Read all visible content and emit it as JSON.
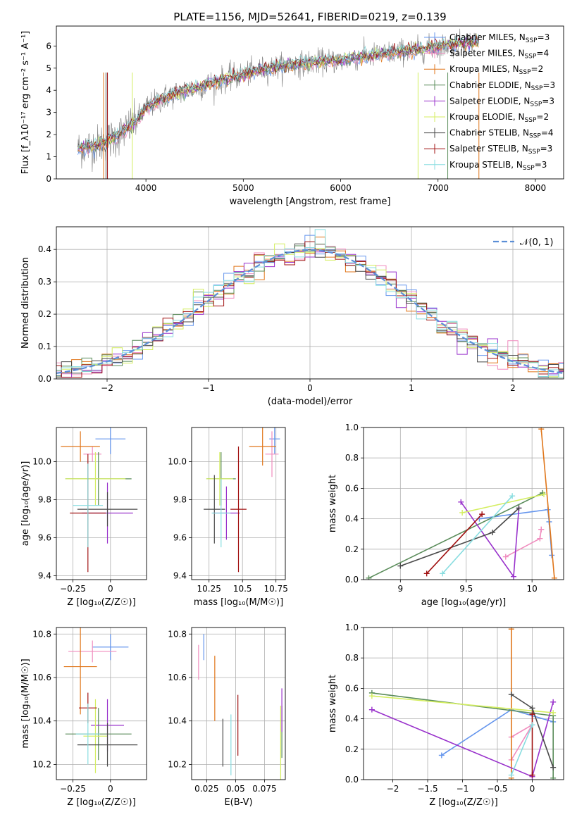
{
  "figure": {
    "title": "PLATE=1156, MJD=52641, FIBERID=0219, z=0.139"
  },
  "models": [
    {
      "name": "Chabrier MILES",
      "nssp": "3",
      "color": "#6495ed"
    },
    {
      "name": "Salpeter MILES",
      "nssp": "4",
      "color": "#f08cbe"
    },
    {
      "name": "Kroupa MILES",
      "nssp": "2",
      "color": "#e0761a"
    },
    {
      "name": "Chabrier ELODIE",
      "nssp": "3",
      "color": "#5a8c5a"
    },
    {
      "name": "Salpeter ELODIE",
      "nssp": "3",
      "color": "#9932cc"
    },
    {
      "name": "Kroupa ELODIE",
      "nssp": "2",
      "color": "#d4ee60"
    },
    {
      "name": "Chabrier STELIB",
      "nssp": "4",
      "color": "#4a4a4a"
    },
    {
      "name": "Salpeter STELIB",
      "nssp": "3",
      "color": "#a01010"
    },
    {
      "name": "Kroupa STELIB",
      "nssp": "3",
      "color": "#88dde0"
    }
  ],
  "chart_data": [
    {
      "id": "spectrum",
      "type": "line",
      "xlabel": "wavelength [Angstrom, rest frame]",
      "ylabel": "Flux [f_λ10⁻¹⁷ erg cm⁻² s⁻¹ A⁻¹]",
      "xlim": [
        3080,
        8290
      ],
      "ylim": [
        0,
        6.9
      ],
      "xticks": [
        4000,
        5000,
        6000,
        7000,
        8000
      ],
      "yticks": [
        0,
        1,
        2,
        3,
        4,
        5,
        6
      ],
      "grid": false,
      "legend": "top-right",
      "data_color": "#808080",
      "continuum": {
        "x": [
          3300,
          3500,
          3700,
          3900,
          4000,
          4200,
          4400,
          4600,
          4800,
          5000,
          5200,
          5400,
          5600,
          5800,
          6000,
          6200,
          6400,
          6600,
          6800,
          7000,
          7200,
          7400
        ],
        "y": [
          1.35,
          1.55,
          1.9,
          2.6,
          3.2,
          3.7,
          4.0,
          4.2,
          4.5,
          4.7,
          4.95,
          5.1,
          5.2,
          5.3,
          5.35,
          5.5,
          5.6,
          5.75,
          5.85,
          5.95,
          6.1,
          6.2
        ]
      }
    },
    {
      "id": "residuals",
      "type": "histogram",
      "xlabel": "(data-model)/error",
      "ylabel": "Normed distribution",
      "xlim": [
        -2.5,
        2.5
      ],
      "ylim": [
        0,
        0.47
      ],
      "xticks": [
        -2,
        -1,
        0,
        1,
        2
      ],
      "yticks": [
        0.0,
        0.1,
        0.2,
        0.3,
        0.4
      ],
      "grid": true,
      "legend": "top-right",
      "bin_width": 0.1,
      "reference_curve": {
        "label": "𝒩(0, 1)",
        "color": "#5b8ed6"
      }
    },
    {
      "id": "age-vs-Z",
      "type": "errorbar",
      "xlabel": "Z [log₁₀(Z/Z☉)]",
      "ylabel": "age  [log₁₀(age/yr)]",
      "xlim": [
        -0.36,
        0.24
      ],
      "ylim": [
        9.38,
        10.18
      ],
      "xticks": [
        -0.25,
        0.0
      ],
      "yticks": [
        9.4,
        9.6,
        9.8,
        10.0
      ],
      "grid": true,
      "points": [
        {
          "x": 0.0,
          "y": 10.12,
          "xerr": 0.1,
          "yerr": 0.08
        },
        {
          "x": -0.12,
          "y": 10.04,
          "xerr": 0.06,
          "yerr": 0.04
        },
        {
          "x": -0.2,
          "y": 10.08,
          "xerr": 0.13,
          "yerr": 0.08
        },
        {
          "x": -0.08,
          "y": 9.91,
          "xerr": 0.22,
          "yerr": 0.14
        },
        {
          "x": -0.02,
          "y": 9.73,
          "xerr": 0.17,
          "yerr": 0.16
        },
        {
          "x": -0.1,
          "y": 9.91,
          "xerr": 0.2,
          "yerr": 0.14
        },
        {
          "x": -0.02,
          "y": 9.75,
          "xerr": 0.2,
          "yerr": 0.09
        },
        {
          "x": -0.15,
          "y": 9.73,
          "xerr": 0.12,
          "yerr": 0.31
        },
        {
          "x": -0.15,
          "y": 9.77,
          "xerr": 0.1,
          "yerr": 0.22
        }
      ]
    },
    {
      "id": "age-vs-mass",
      "type": "errorbar",
      "xlabel": "mass [log₁₀(M/M☉)]",
      "ylabel": "",
      "xlim": [
        10.12,
        10.82
      ],
      "ylim": [
        9.38,
        10.18
      ],
      "xticks": [
        10.25,
        10.5,
        10.75
      ],
      "yticks": [
        9.4,
        9.6,
        9.8,
        10.0
      ],
      "grid": true,
      "points": [
        {
          "x": 10.74,
          "y": 10.12,
          "xerr": 0.04,
          "yerr": 0.08
        },
        {
          "x": 10.72,
          "y": 10.04,
          "xerr": 0.05,
          "yerr": 0.12
        },
        {
          "x": 10.65,
          "y": 10.08,
          "xerr": 0.1,
          "yerr": 0.1
        },
        {
          "x": 10.34,
          "y": 9.91,
          "xerr": 0.11,
          "yerr": 0.14
        },
        {
          "x": 10.38,
          "y": 9.73,
          "xerr": 0.1,
          "yerr": 0.14
        },
        {
          "x": 10.33,
          "y": 9.91,
          "xerr": 0.1,
          "yerr": 0.14
        },
        {
          "x": 10.29,
          "y": 9.75,
          "xerr": 0.08,
          "yerr": 0.18
        },
        {
          "x": 10.47,
          "y": 9.75,
          "xerr": 0.06,
          "yerr": 0.33
        },
        {
          "x": 10.34,
          "y": 9.73,
          "xerr": 0.07,
          "yerr": 0.18
        }
      ]
    },
    {
      "id": "weight-vs-age",
      "type": "line",
      "xlabel": "age  [log₁₀(age/yr)]",
      "ylabel": "mass weight",
      "xlim": [
        8.72,
        10.24
      ],
      "ylim": [
        0,
        1
      ],
      "xticks": [
        9.0,
        9.5,
        10.0
      ],
      "yticks": [
        0.0,
        0.2,
        0.4,
        0.6,
        0.8,
        1.0
      ],
      "grid": true,
      "series": [
        {
          "x": [
            9.6,
            10.12,
            10.13,
            10.15
          ],
          "y": [
            0.4,
            0.46,
            0.38,
            0.16
          ]
        },
        {
          "x": [
            9.8,
            10.06,
            10.07,
            10.07
          ],
          "y": [
            0.15,
            0.27,
            0.33,
            0.33
          ]
        },
        {
          "x": [
            10.07,
            10.17
          ],
          "y": [
            0.99,
            0.01
          ]
        },
        {
          "x": [
            8.76,
            10.08
          ],
          "y": [
            0.01,
            0.57
          ]
        },
        {
          "x": [
            9.46,
            9.86,
            9.9
          ],
          "y": [
            0.51,
            0.02,
            0.47
          ]
        },
        {
          "x": [
            9.47,
            10.09
          ],
          "y": [
            0.44,
            0.56
          ]
        },
        {
          "x": [
            9.0,
            9.7,
            9.9
          ],
          "y": [
            0.09,
            0.31,
            0.47
          ]
        },
        {
          "x": [
            9.2,
            9.62
          ],
          "y": [
            0.04,
            0.43
          ]
        },
        {
          "x": [
            9.32,
            9.85
          ],
          "y": [
            0.04,
            0.55
          ]
        }
      ]
    },
    {
      "id": "mass-vs-Z",
      "type": "errorbar",
      "xlabel": "Z [log₁₀(Z/Z☉)]",
      "ylabel": "mass [log₁₀(M/M☉)]",
      "xlim": [
        -0.36,
        0.24
      ],
      "ylim": [
        10.13,
        10.83
      ],
      "xticks": [
        -0.25,
        0.0
      ],
      "yticks": [
        10.2,
        10.4,
        10.6,
        10.8
      ],
      "grid": true,
      "points": [
        {
          "x": 0.0,
          "y": 10.74,
          "xerr": 0.12,
          "yerr": 0.06
        },
        {
          "x": -0.12,
          "y": 10.72,
          "xerr": 0.16,
          "yerr": 0.05
        },
        {
          "x": -0.2,
          "y": 10.65,
          "xerr": 0.11,
          "yerr": 0.22
        },
        {
          "x": -0.08,
          "y": 10.34,
          "xerr": 0.22,
          "yerr": 0.12
        },
        {
          "x": -0.02,
          "y": 10.38,
          "xerr": 0.11,
          "yerr": 0.12
        },
        {
          "x": -0.1,
          "y": 10.33,
          "xerr": 0.08,
          "yerr": 0.17
        },
        {
          "x": -0.02,
          "y": 10.29,
          "xerr": 0.2,
          "yerr": 0.1
        },
        {
          "x": -0.15,
          "y": 10.46,
          "xerr": 0.06,
          "yerr": 0.07
        },
        {
          "x": -0.15,
          "y": 10.34,
          "xerr": 0.08,
          "yerr": 0.14
        }
      ]
    },
    {
      "id": "mass-vs-ebv",
      "type": "errorbar",
      "xlabel": "E(B-V)",
      "ylabel": "",
      "xlim": [
        0.012,
        0.093
      ],
      "ylim": [
        10.13,
        10.83
      ],
      "xticks": [
        0.025,
        0.05,
        0.075
      ],
      "yticks": [
        10.2,
        10.4,
        10.6,
        10.8
      ],
      "grid": true,
      "points": [
        {
          "x": 0.0225,
          "y": 10.74,
          "xerr": 0,
          "yerr": 0.06
        },
        {
          "x": 0.018,
          "y": 10.67,
          "xerr": 0,
          "yerr": 0.08
        },
        {
          "x": 0.032,
          "y": 10.55,
          "xerr": 0,
          "yerr": 0.15
        },
        {
          "x": 0.09,
          "y": 10.35,
          "xerr": 0,
          "yerr": 0.12
        },
        {
          "x": 0.09,
          "y": 10.45,
          "xerr": 0,
          "yerr": 0.1
        },
        {
          "x": 0.089,
          "y": 10.3,
          "xerr": 0,
          "yerr": 0.17
        },
        {
          "x": 0.039,
          "y": 10.3,
          "xerr": 0,
          "yerr": 0.11
        },
        {
          "x": 0.052,
          "y": 10.38,
          "xerr": 0,
          "yerr": 0.14
        },
        {
          "x": 0.046,
          "y": 10.29,
          "xerr": 0,
          "yerr": 0.14
        }
      ]
    },
    {
      "id": "weight-vs-Z",
      "type": "line",
      "xlabel": "Z [log₁₀(Z/Z☉)]",
      "ylabel": "mass weight",
      "xlim": [
        -2.42,
        0.45
      ],
      "ylim": [
        0,
        1
      ],
      "xticks": [
        -2.0,
        -1.5,
        -1.0,
        -0.5,
        0.0
      ],
      "yticks": [
        0.0,
        0.2,
        0.4,
        0.6,
        0.8,
        1.0
      ],
      "grid": true,
      "series": [
        {
          "x": [
            -1.3,
            -0.3,
            0.3
          ],
          "y": [
            0.16,
            0.46,
            0.38
          ]
        },
        {
          "x": [
            -0.3,
            0.0,
            -0.3
          ],
          "y": [
            0.28,
            0.36,
            0.13
          ]
        },
        {
          "x": [
            -0.3,
            -0.3
          ],
          "y": [
            0.99,
            0.01
          ]
        },
        {
          "x": [
            -2.3,
            0.3,
            0.3
          ],
          "y": [
            0.57,
            0.42,
            0.01
          ]
        },
        {
          "x": [
            -2.3,
            0.0,
            0.3
          ],
          "y": [
            0.46,
            0.02,
            0.51
          ]
        },
        {
          "x": [
            -2.3,
            0.3
          ],
          "y": [
            0.55,
            0.44
          ]
        },
        {
          "x": [
            -0.3,
            0.0,
            0.3
          ],
          "y": [
            0.56,
            0.47,
            0.08
          ]
        },
        {
          "x": [
            0.0,
            0.0
          ],
          "y": [
            0.43,
            0.03
          ]
        },
        {
          "x": [
            -0.3,
            0.0
          ],
          "y": [
            0.03,
            0.36
          ]
        }
      ]
    }
  ]
}
